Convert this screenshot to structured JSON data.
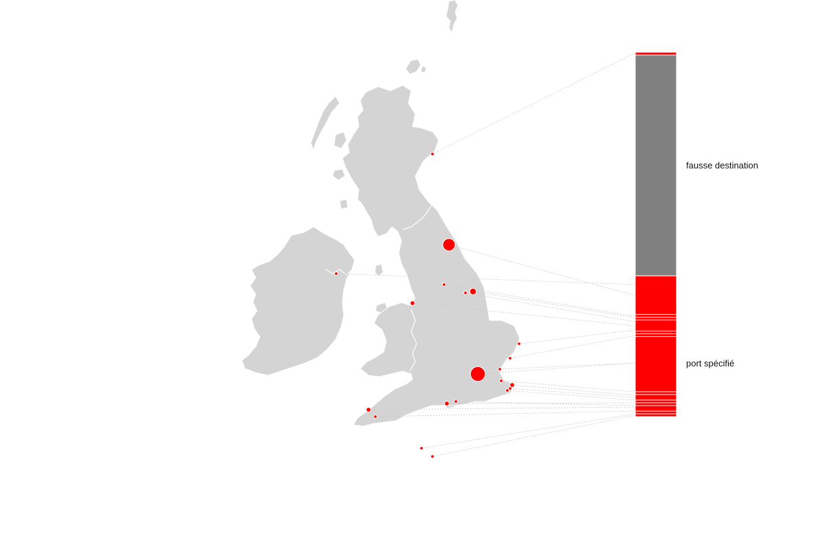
{
  "colors": {
    "land": "#d4d4d4",
    "port_specified": "#ff0000",
    "false_destination": "#808080",
    "leader": "#c8c8c8"
  },
  "labels": {
    "false_destination": "fausse destination",
    "port_specified": "port spécifié"
  },
  "chart_data": {
    "type": "stacked-bar-with-map",
    "categories": [
      {
        "key": "false_destination",
        "name": "fausse destination",
        "color": "#808080"
      },
      {
        "key": "port_specified",
        "name": "port spécifié",
        "color": "#ff0000"
      }
    ],
    "stack": [
      {
        "category": "port_specified",
        "value": 1
      },
      {
        "category": "false_destination",
        "value": 80
      },
      {
        "category": "port_specified",
        "value": 14
      },
      {
        "category": "port_specified",
        "value": 1
      },
      {
        "category": "port_specified",
        "value": 1
      },
      {
        "category": "port_specified",
        "value": 4
      },
      {
        "category": "port_specified",
        "value": 1
      },
      {
        "category": "port_specified",
        "value": 1
      },
      {
        "category": "port_specified",
        "value": 20
      },
      {
        "category": "port_specified",
        "value": 1
      },
      {
        "category": "port_specified",
        "value": 2
      },
      {
        "category": "port_specified",
        "value": 1
      },
      {
        "category": "port_specified",
        "value": 1
      },
      {
        "category": "port_specified",
        "value": 2
      },
      {
        "category": "port_specified",
        "value": 1
      },
      {
        "category": "port_specified",
        "value": 1
      }
    ],
    "ports": [
      {
        "category": "false_destination",
        "size": 1
      },
      {
        "category": "port_specified",
        "size": 14
      },
      {
        "category": "port_specified",
        "size": 1
      },
      {
        "category": "port_specified",
        "size": 1
      },
      {
        "category": "port_specified",
        "size": 4
      },
      {
        "category": "port_specified",
        "size": 1
      },
      {
        "category": "port_specified",
        "size": 2
      },
      {
        "category": "port_specified",
        "size": 1
      },
      {
        "category": "port_specified",
        "size": 1
      },
      {
        "category": "port_specified",
        "size": 1
      },
      {
        "category": "port_specified",
        "size": 20
      },
      {
        "category": "port_specified",
        "size": 1
      },
      {
        "category": "port_specified",
        "size": 2
      },
      {
        "category": "port_specified",
        "size": 1
      },
      {
        "category": "port_specified",
        "size": 1
      },
      {
        "category": "port_specified",
        "size": 2
      },
      {
        "category": "port_specified",
        "size": 1
      },
      {
        "category": "port_specified",
        "size": 2
      },
      {
        "category": "port_specified",
        "size": 1
      },
      {
        "category": "port_specified",
        "size": 1
      },
      {
        "category": "port_specified",
        "size": 1
      }
    ]
  }
}
